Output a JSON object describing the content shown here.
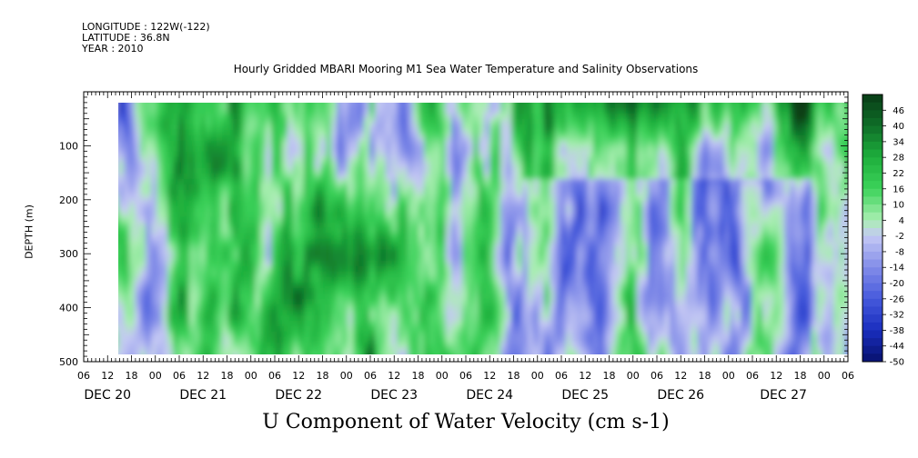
{
  "header": {
    "longitude": "LONGITUDE : 122W(-122)",
    "latitude": "LATITUDE : 36.8N",
    "year": "YEAR : 2010"
  },
  "chart_data": {
    "type": "heatmap",
    "title": "Hourly Gridded MBARI Mooring M1 Sea Water Temperature and Salinity Observations",
    "xlabel": "U Component of Water Velocity (cm s-1)",
    "ylabel": "DEPTH (m)",
    "x_hour_ticks": [
      "06",
      "12",
      "18",
      "00",
      "06",
      "12",
      "18",
      "00",
      "06",
      "12",
      "18",
      "00",
      "06",
      "12",
      "18",
      "00",
      "06",
      "12",
      "18",
      "00",
      "06",
      "12",
      "18",
      "00",
      "06",
      "12",
      "18",
      "00",
      "06",
      "12",
      "18",
      "00",
      "06"
    ],
    "x_day_labels": [
      "DEC 20",
      "DEC 21",
      "DEC 22",
      "DEC 23",
      "DEC 24",
      "DEC 25",
      "DEC 26",
      "DEC 27"
    ],
    "y_ticks": [
      100,
      200,
      300,
      400,
      500
    ],
    "y_range": [
      0,
      500
    ],
    "data_depth_range": [
      20,
      490
    ],
    "colorbar_labels": [
      46,
      40,
      34,
      28,
      22,
      16,
      10,
      4,
      -2,
      -8,
      -14,
      -20,
      -26,
      -32,
      -38,
      -44,
      -50
    ],
    "colorbar_range": [
      -50,
      52
    ],
    "colors": {
      "strong_positive": "#0b5a1f",
      "positive": "#1fbf3a",
      "weak_positive": "#9fe8a8",
      "weak_negative": "#c4c8f2",
      "negative": "#8f98e4",
      "strong_negative": "#0b1a9a"
    }
  }
}
